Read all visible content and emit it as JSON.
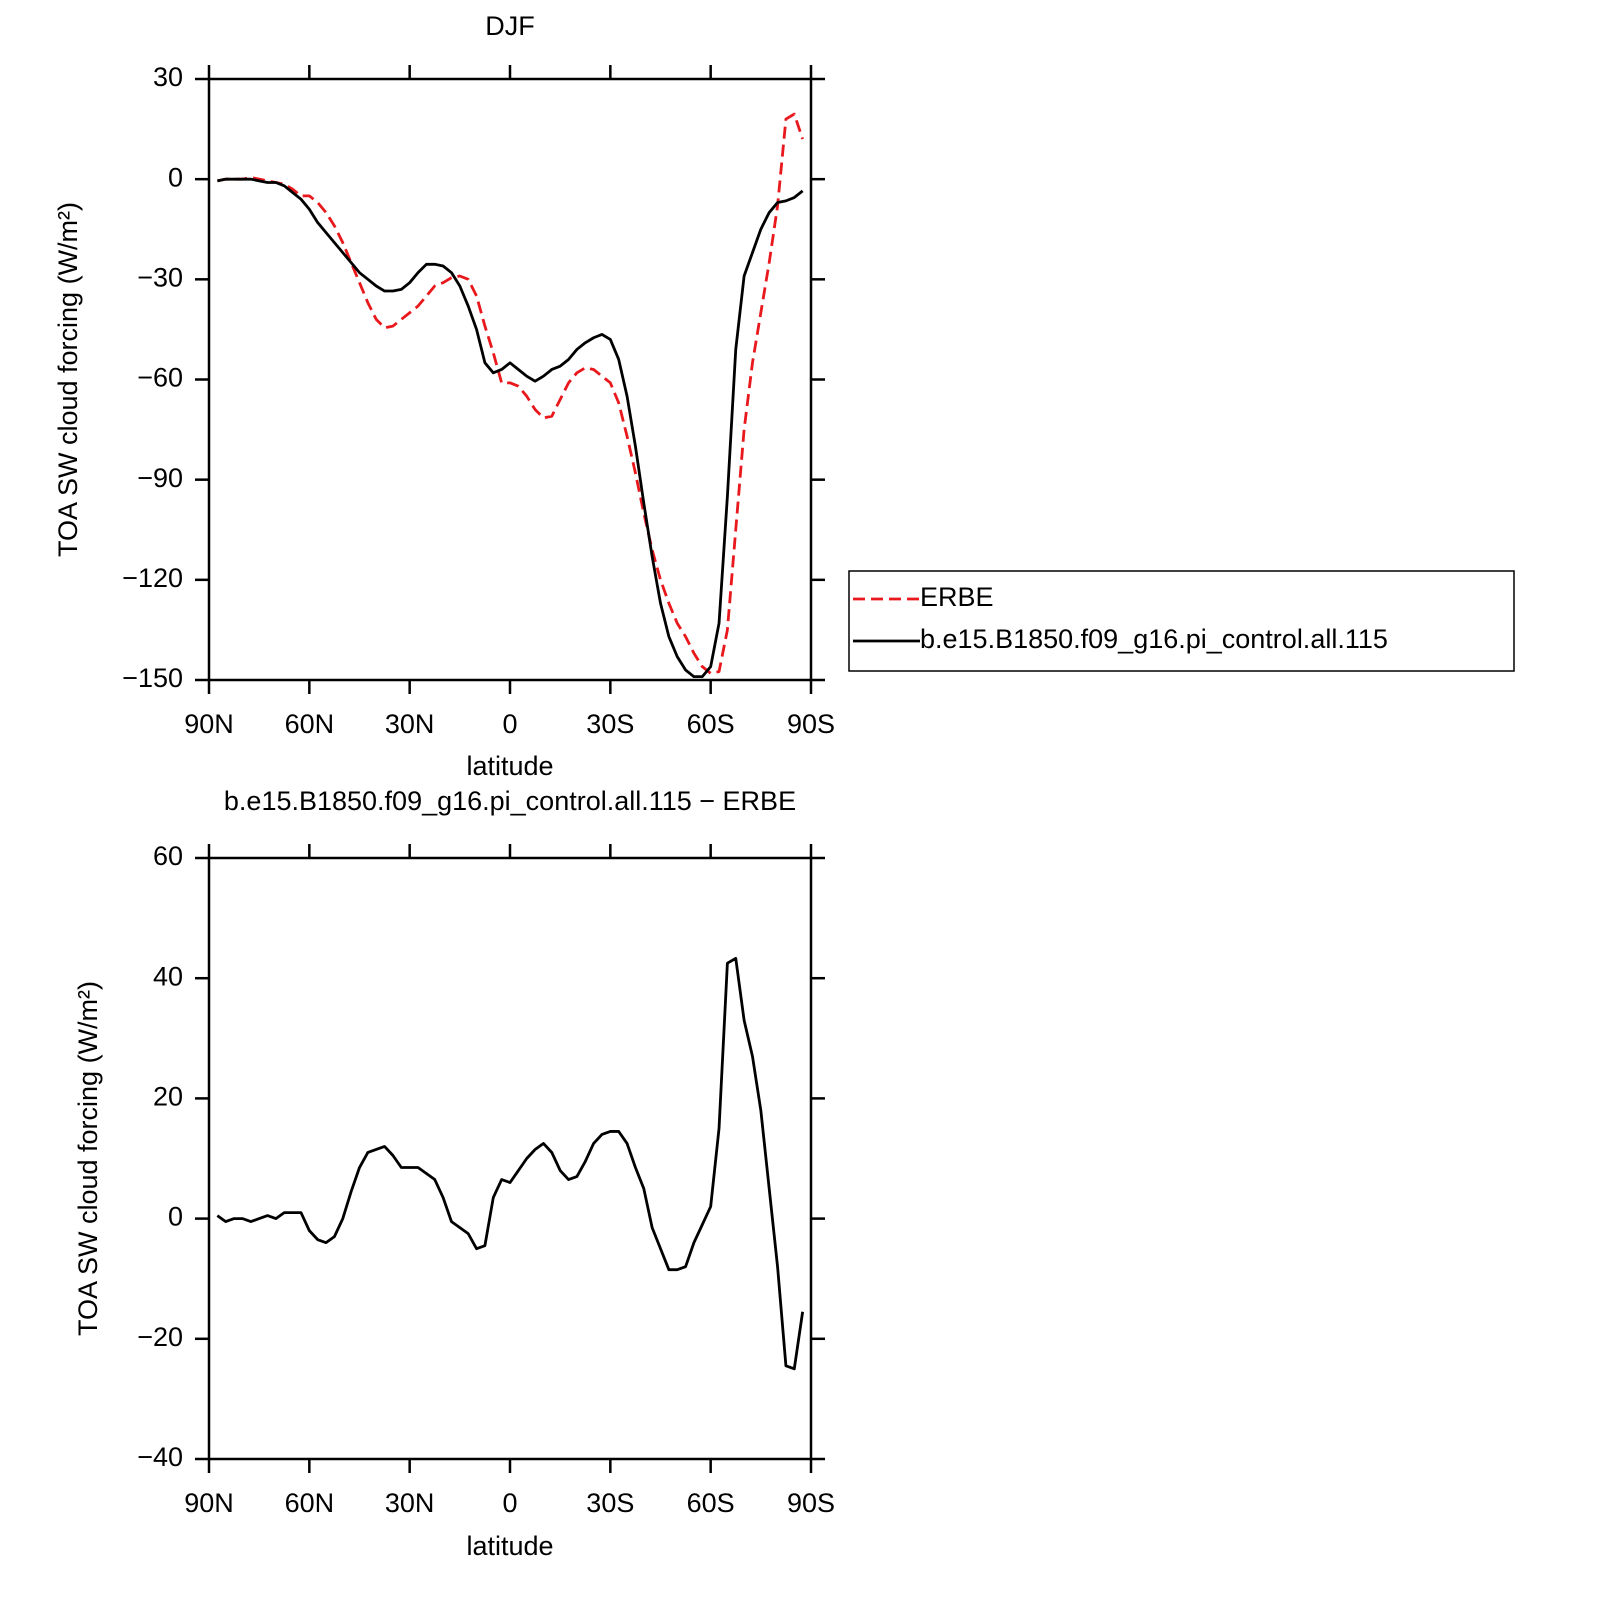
{
  "chart_data": [
    {
      "type": "line",
      "title": "DJF",
      "x_label": "latitude",
      "y_label": "TOA SW cloud forcing (W/m²)",
      "x": [
        87.5,
        85,
        82.5,
        80,
        77.5,
        75,
        72.5,
        70,
        67.5,
        65,
        62.5,
        60,
        57.5,
        55,
        52.5,
        50,
        47.5,
        45,
        42.5,
        40,
        37.5,
        35,
        32.5,
        30,
        27.5,
        25,
        22.5,
        20,
        17.5,
        15,
        12.5,
        10,
        7.5,
        5,
        2.5,
        0,
        -2.5,
        -5,
        -7.5,
        -10,
        -12.5,
        -15,
        -17.5,
        -20,
        -22.5,
        -25,
        -27.5,
        -30,
        -32.5,
        -35,
        -37.5,
        -40,
        -42.5,
        -45,
        -47.5,
        -50,
        -52.5,
        -55,
        -57.5,
        -60,
        -62.5,
        -65,
        -67.5,
        -70,
        -72.5,
        -75,
        -77.5,
        -80,
        -82.5,
        -85,
        -87.5
      ],
      "series": [
        {
          "name": "ERBE",
          "color": "#e8181c",
          "linestyle": "dashed",
          "values": [
            -0.5,
            0,
            0,
            0,
            0.5,
            0,
            -0.5,
            -1,
            -1.5,
            -3,
            -5,
            -5,
            -7,
            -10,
            -14,
            -19,
            -25,
            -31,
            -37,
            -42,
            -44.5,
            -44,
            -42,
            -40,
            -38,
            -35,
            -32,
            -31,
            -29.5,
            -29,
            -30,
            -35,
            -44,
            -52,
            -61,
            -61,
            -62,
            -65,
            -69,
            -71.5,
            -71,
            -66,
            -61,
            -58,
            -56.5,
            -57,
            -59,
            -61,
            -67,
            -77,
            -88,
            -100,
            -111,
            -120,
            -127,
            -133,
            -137,
            -142,
            -146,
            -148,
            -147.5,
            -135,
            -105,
            -75,
            -55,
            -40,
            -25,
            -8,
            18,
            19.5,
            12
          ]
        },
        {
          "name": "b.e15.B1850.f09_g16.pi_control.all.115",
          "color": "#000000",
          "linestyle": "solid",
          "values": [
            -0.5,
            0,
            0,
            0,
            0,
            -0.5,
            -1,
            -1,
            -2,
            -4,
            -6,
            -9,
            -13,
            -16,
            -19,
            -22,
            -25,
            -28,
            -30,
            -32,
            -33.5,
            -33.5,
            -33,
            -31,
            -28,
            -25.5,
            -25.5,
            -26,
            -28,
            -32,
            -38,
            -45,
            -55,
            -58,
            -57,
            -55,
            -57,
            -59,
            -60.5,
            -59,
            -57,
            -56,
            -54,
            -51,
            -49,
            -47.5,
            -46.5,
            -48,
            -54,
            -65,
            -80,
            -97,
            -113,
            -127,
            -137,
            -143,
            -147,
            -149,
            -149,
            -146,
            -133,
            -95,
            -51,
            -29,
            -22,
            -15,
            -10,
            -7,
            -6.5,
            -5.5,
            -3.5
          ]
        }
      ],
      "xlim": [
        90,
        -90
      ],
      "xticks": [
        {
          "value": 90,
          "label": "90N"
        },
        {
          "value": 60,
          "label": "60N"
        },
        {
          "value": 30,
          "label": "30N"
        },
        0,
        {
          "value": -30,
          "label": "30S"
        },
        {
          "value": -60,
          "label": "60S"
        },
        {
          "value": -90,
          "label": "90S"
        }
      ],
      "ylim": [
        -150,
        30
      ],
      "yticks": [
        {
          "value": -150,
          "label": "−150"
        },
        {
          "value": -120,
          "label": "−120"
        },
        {
          "value": -90,
          "label": "−90"
        },
        {
          "value": -60,
          "label": "−60"
        },
        {
          "value": -30,
          "label": "−30"
        },
        0,
        30
      ],
      "grid": false,
      "legend": "right"
    },
    {
      "type": "line",
      "title": "b.e15.B1850.f09_g16.pi_control.all.115 − ERBE",
      "x_label": "latitude",
      "y_label": "TOA SW cloud forcing (W/m²)",
      "x": [
        87.5,
        85,
        82.5,
        80,
        77.5,
        75,
        72.5,
        70,
        67.5,
        65,
        62.5,
        60,
        57.5,
        55,
        52.5,
        50,
        47.5,
        45,
        42.5,
        40,
        37.5,
        35,
        32.5,
        30,
        27.5,
        25,
        22.5,
        20,
        17.5,
        15,
        12.5,
        10,
        7.5,
        5,
        2.5,
        0,
        -2.5,
        -5,
        -7.5,
        -10,
        -12.5,
        -15,
        -17.5,
        -20,
        -22.5,
        -25,
        -27.5,
        -30,
        -32.5,
        -35,
        -37.5,
        -40,
        -42.5,
        -45,
        -47.5,
        -50,
        -52.5,
        -55,
        -57.5,
        -60,
        -62.5,
        -65,
        -67.5,
        -70,
        -72.5,
        -75,
        -77.5,
        -80,
        -82.5,
        -85,
        -87.5
      ],
      "values": [
        0.5,
        -0.5,
        0,
        0,
        -0.5,
        0,
        0.5,
        0,
        1,
        1,
        1,
        -2,
        -3.5,
        -4,
        -3,
        0,
        4.5,
        8.5,
        11,
        11.5,
        12,
        10.5,
        8.5,
        8.5,
        8.5,
        7.5,
        6.5,
        3.5,
        -0.5,
        -1.5,
        -2.5,
        -5,
        -4.5,
        3.5,
        6.5,
        6,
        8,
        10,
        11.5,
        12.5,
        11,
        8,
        6.5,
        7,
        9.5,
        12.5,
        14,
        14.5,
        14.5,
        12.5,
        8.5,
        5,
        -1.5,
        -5,
        -8.5,
        -8.5,
        -8,
        -4,
        -1,
        2,
        15,
        42.5,
        43.3,
        33,
        27,
        18,
        5,
        -8,
        -24.5,
        -25,
        -15.5
      ],
      "color": "#000000",
      "xlim": [
        90,
        -90
      ],
      "xticks": [
        {
          "value": 90,
          "label": "90N"
        },
        {
          "value": 60,
          "label": "60N"
        },
        {
          "value": 30,
          "label": "30N"
        },
        0,
        {
          "value": -30,
          "label": "30S"
        },
        {
          "value": -60,
          "label": "60S"
        },
        {
          "value": -90,
          "label": "90S"
        }
      ],
      "ylim": [
        -40,
        60
      ],
      "yticks": [
        {
          "value": -40,
          "label": "−40"
        },
        {
          "value": -20,
          "label": "−20"
        },
        0,
        20,
        40,
        60
      ],
      "grid": false
    }
  ]
}
